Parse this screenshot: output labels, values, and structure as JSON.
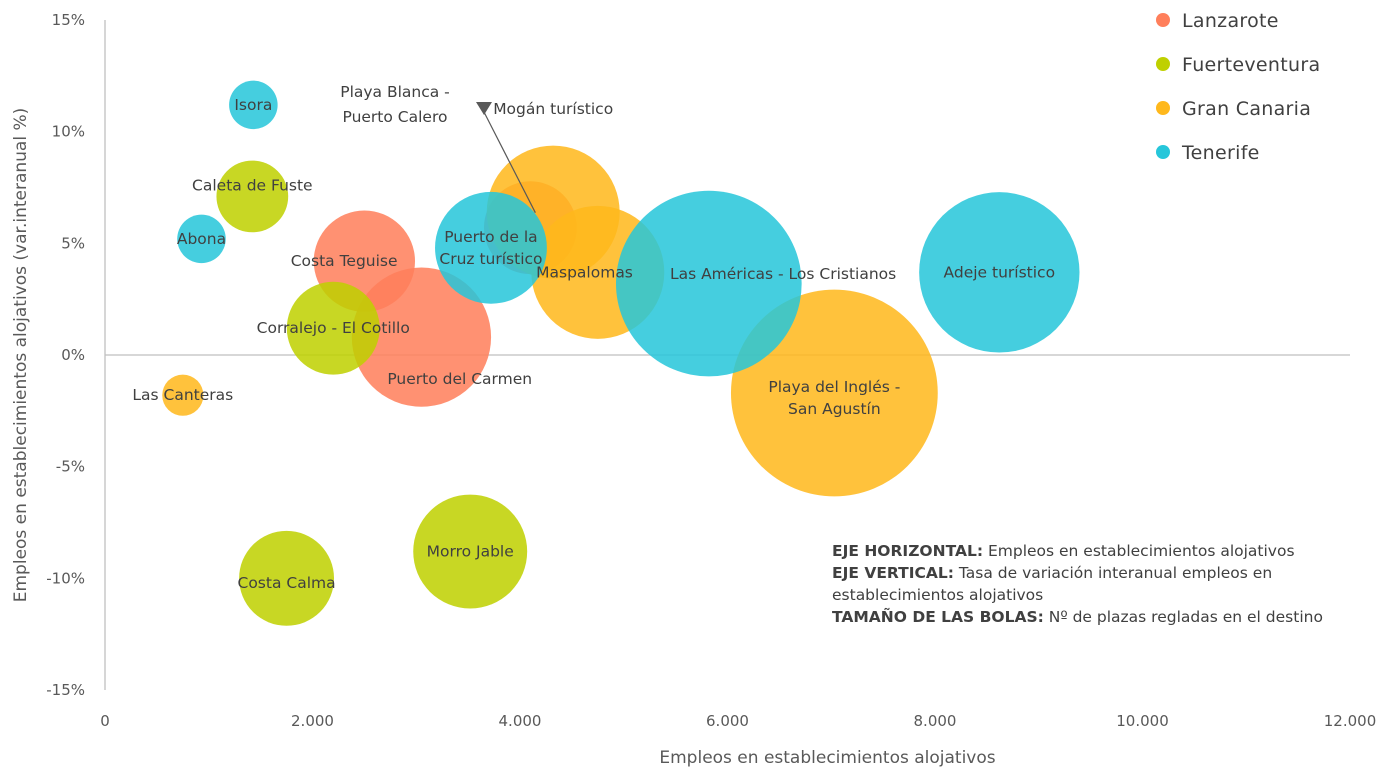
{
  "chart_data": {
    "type": "bubble",
    "xlabel": "Empleos en establecimientos alojativos",
    "ylabel": "Empleos en establecimientos alojativos (var.interanual %)",
    "xlim": [
      0,
      12000
    ],
    "ylim": [
      -0.15,
      0.15
    ],
    "x_ticks": [
      "0",
      "2.000",
      "4.000",
      "6.000",
      "8.000",
      "10.000",
      "12.000"
    ],
    "x_tick_values": [
      0,
      2000,
      4000,
      6000,
      8000,
      10000,
      12000
    ],
    "y_ticks": [
      "15%",
      "10%",
      "5%",
      "0%",
      "-5%",
      "-10%",
      "-15%"
    ],
    "y_tick_values": [
      0.15,
      0.1,
      0.05,
      0,
      -0.05,
      -0.1,
      -0.15
    ],
    "legend_position": "top-right",
    "size_note": "TAMAÑO DE LAS BOLAS: Nº de plazas regladas en el destino",
    "series": [
      {
        "name": "Lanzarote",
        "color": "#FF7F5B",
        "points": [
          {
            "label": "Costa Teguise",
            "x": 2500,
            "y": 0.042,
            "size": 4.8
          },
          {
            "label": "Puerto del Carmen",
            "x": 3050,
            "y": 0.008,
            "size": 6.6
          },
          {
            "label": "Playa Blanca - Puerto Calero",
            "x": 4100,
            "y": 0.057,
            "size": 4.4
          }
        ]
      },
      {
        "name": "Fuerteventura",
        "color": "#BFD000",
        "points": [
          {
            "label": "Caleta de Fuste",
            "x": 1420,
            "y": 0.071,
            "size": 3.4
          },
          {
            "label": "Corralejo - El Cotillo",
            "x": 2200,
            "y": 0.012,
            "size": 4.4
          },
          {
            "label": "Costa Calma",
            "x": 1750,
            "y": -0.1,
            "size": 4.5
          },
          {
            "label": "Morro Jable",
            "x": 3520,
            "y": -0.088,
            "size": 5.4
          }
        ]
      },
      {
        "name": "Gran Canaria",
        "color": "#FFB81C",
        "points": [
          {
            "label": "Las Canteras",
            "x": 750,
            "y": -0.018,
            "size": 1.95
          },
          {
            "label": "Mogán turístico",
            "x": 4320,
            "y": 0.064,
            "size": 6.3
          },
          {
            "label": "Maspalomas",
            "x": 4750,
            "y": 0.037,
            "size": 6.3
          },
          {
            "label": "Playa del Inglés - San Agustín",
            "x": 7030,
            "y": -0.017,
            "size": 9.8
          }
        ]
      },
      {
        "name": "Tenerife",
        "color": "#26C6DA",
        "points": [
          {
            "label": "Isora",
            "x": 1430,
            "y": 0.112,
            "size": 2.3
          },
          {
            "label": "Abona",
            "x": 930,
            "y": 0.052,
            "size": 2.3
          },
          {
            "label": "Puerto de la Cruz turístico",
            "x": 3720,
            "y": 0.048,
            "size": 5.3
          },
          {
            "label": "Las Américas - Los Cristianos",
            "x": 5820,
            "y": 0.032,
            "size": 8.8
          },
          {
            "label": "Adeje turístico",
            "x": 8620,
            "y": 0.037,
            "size": 7.6
          }
        ]
      }
    ],
    "annotations": [
      {
        "point": "Playa Blanca - Puerto Calero",
        "lines": [
          "Playa Blanca -",
          "Puerto Calero"
        ],
        "arrow": true
      }
    ]
  },
  "notes": {
    "h_key": "EJE HORIZONTAL:",
    "h_text": " Empleos en establecimientos alojativos",
    "v_key": "EJE VERTICAL:",
    "v_text": " Tasa de variación interanual empleos en establecimientos alojativos",
    "s_key": "TAMAÑO DE LAS BOLAS:",
    "s_text": " Nº de plazas regladas en el destino"
  }
}
